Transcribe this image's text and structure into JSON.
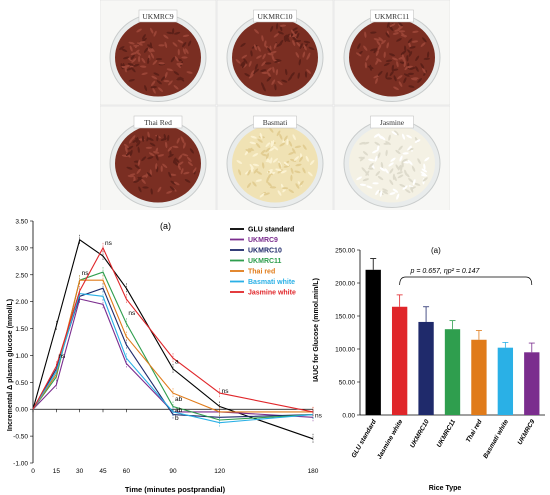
{
  "photos": [
    {
      "label": "UKMRC9",
      "tone": "red"
    },
    {
      "label": "UKMRC10",
      "tone": "red"
    },
    {
      "label": "UKMRC11",
      "tone": "red"
    },
    {
      "label": "Thai Red",
      "tone": "red"
    },
    {
      "label": "Basmati",
      "tone": "cream"
    },
    {
      "label": "Jasmine",
      "tone": "white"
    }
  ],
  "colors": {
    "red_rice": "#7a2e22",
    "basmati": "#f0e2b4",
    "jasmine": "#f4f1e4",
    "plate": "#e9ecec"
  },
  "chart_data": [
    {
      "type": "line",
      "panel_label": "(a)",
      "xlabel": "Time (minutes postprandial)",
      "ylabel": "Incremental Δ plasma glucose (mmol/L)",
      "x": [
        0,
        15,
        30,
        45,
        60,
        90,
        120,
        180
      ],
      "xlim": [
        0,
        180
      ],
      "ylim": [
        -1.0,
        3.5
      ],
      "yticks": [
        "-1.00",
        "-0.50",
        "0.00",
        "0.50",
        "1.00",
        "1.50",
        "2.00",
        "2.50",
        "3.00",
        "3.50"
      ],
      "xticks": [
        "0",
        "15",
        "30",
        "45",
        "60",
        "90",
        "120",
        "180"
      ],
      "legend_position": "top-right",
      "series": [
        {
          "name": "GLU standard",
          "color": "#000000",
          "values": [
            0,
            1.55,
            3.15,
            2.85,
            2.25,
            0.75,
            0.05,
            -0.55
          ]
        },
        {
          "name": "UKMRC9",
          "color": "#7b2d8e",
          "values": [
            0,
            0.45,
            2.05,
            1.95,
            0.85,
            -0.05,
            -0.05,
            -0.15
          ]
        },
        {
          "name": "UKMRC10",
          "color": "#1f2a6b",
          "values": [
            0,
            0.75,
            2.1,
            2.25,
            1.2,
            -0.1,
            -0.15,
            -0.1
          ]
        },
        {
          "name": "UKMRC11",
          "color": "#2f9e4e",
          "values": [
            0,
            0.6,
            2.4,
            2.55,
            1.6,
            0.05,
            -0.2,
            -0.1
          ]
        },
        {
          "name": "Thai red",
          "color": "#e07b1a",
          "values": [
            0,
            0.65,
            2.4,
            2.4,
            1.35,
            0.3,
            -0.05,
            -0.05
          ]
        },
        {
          "name": "Basmati white",
          "color": "#2ab0e6",
          "values": [
            0,
            0.7,
            2.15,
            2.1,
            0.95,
            -0.05,
            -0.25,
            -0.1
          ]
        },
        {
          "name": "Jasmine white",
          "color": "#e0262a",
          "values": [
            0,
            0.8,
            2.2,
            3.0,
            2.05,
            0.95,
            0.3,
            -0.05
          ]
        }
      ],
      "annotations": [
        {
          "text": "ns",
          "x": 15,
          "y": 0.95
        },
        {
          "text": "ns",
          "x": 30,
          "y": 2.5
        },
        {
          "text": "ns",
          "x": 45,
          "y": 3.05
        },
        {
          "text": "ns",
          "x": 60,
          "y": 1.75
        },
        {
          "text": "a",
          "x": 90,
          "y": 0.85
        },
        {
          "text": "ab",
          "x": 90,
          "y": 0.15
        },
        {
          "text": "ab",
          "x": 90,
          "y": -0.05
        },
        {
          "text": "b",
          "x": 90,
          "y": -0.2
        },
        {
          "text": "ns",
          "x": 120,
          "y": 0.3
        },
        {
          "text": "ns",
          "x": 180,
          "y": -0.15
        }
      ]
    },
    {
      "type": "bar",
      "panel_label": "(a)",
      "xlabel": "Rice Type",
      "ylabel": "IAUC for Glucose (mmol.min/L)",
      "categories": [
        "GLU standard",
        "Jasmine white",
        "UKMRC10",
        "UKMRC11",
        "Thai red",
        "Basmati white",
        "UKMRC9"
      ],
      "values": [
        220,
        164,
        141,
        130,
        114,
        102,
        95
      ],
      "errors": [
        17,
        18,
        23,
        13,
        14,
        8,
        14
      ],
      "colors": [
        "#000000",
        "#e0262a",
        "#1f2a6b",
        "#2f9e4e",
        "#e07b1a",
        "#2ab0e6",
        "#7b2d8e"
      ],
      "ylim": [
        0,
        250
      ],
      "yticks": [
        "0.00",
        "50.00",
        "100.00",
        "150.00",
        "200.00",
        "250.00"
      ],
      "annotation": "p = 0.657, ηp² = 0.147"
    }
  ]
}
